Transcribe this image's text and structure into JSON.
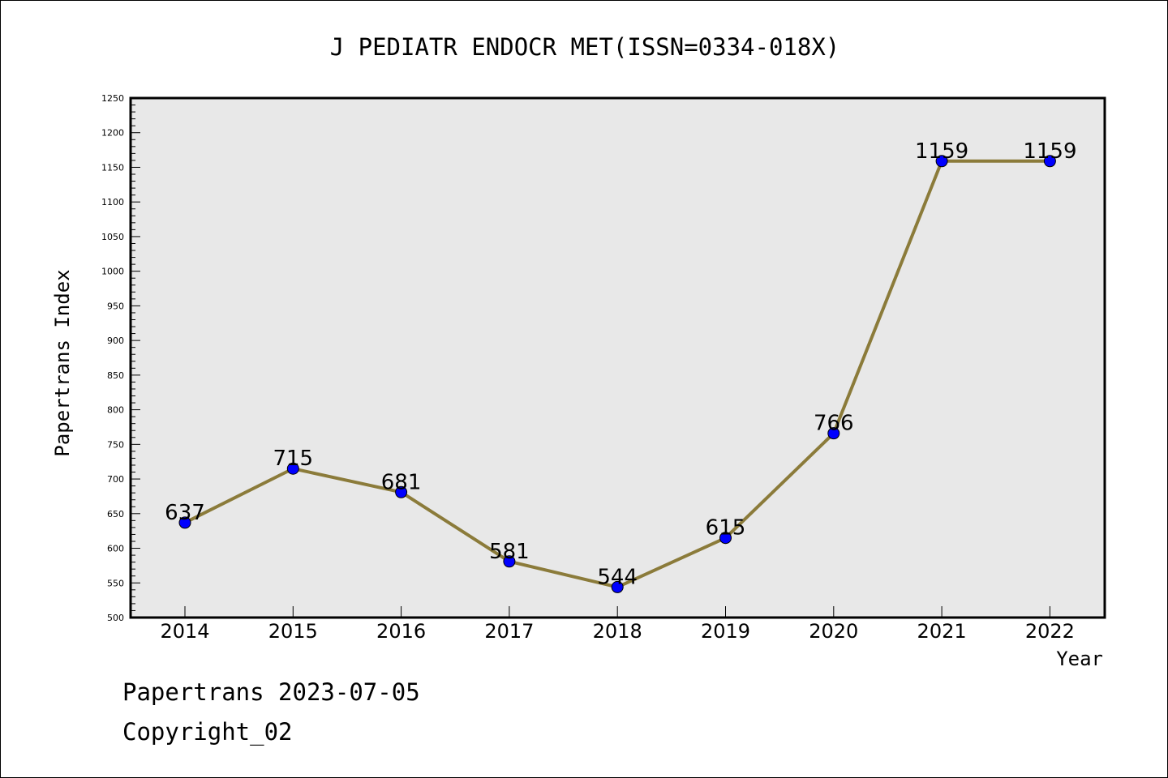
{
  "chart_data": {
    "type": "line",
    "title": "J PEDIATR ENDOCR MET(ISSN=0334-018X)",
    "xlabel": "Year",
    "ylabel": "Papertrans Index",
    "categories": [
      "2014",
      "2015",
      "2016",
      "2017",
      "2018",
      "2019",
      "2020",
      "2021",
      "2022"
    ],
    "values": [
      637,
      715,
      681,
      581,
      544,
      615,
      766,
      1159,
      1159
    ],
    "ylim": [
      500,
      1250
    ],
    "yticks": [
      500,
      550,
      600,
      650,
      700,
      750,
      800,
      850,
      900,
      950,
      1000,
      1050,
      1100,
      1150,
      1200,
      1250
    ],
    "grid": false,
    "colors": {
      "line": "#8b7b3a",
      "marker": "#0000ff",
      "plot_background": "#e8e8e8"
    }
  },
  "footer": {
    "line1": "Papertrans 2023-07-05",
    "line2": "Copyright_02"
  }
}
